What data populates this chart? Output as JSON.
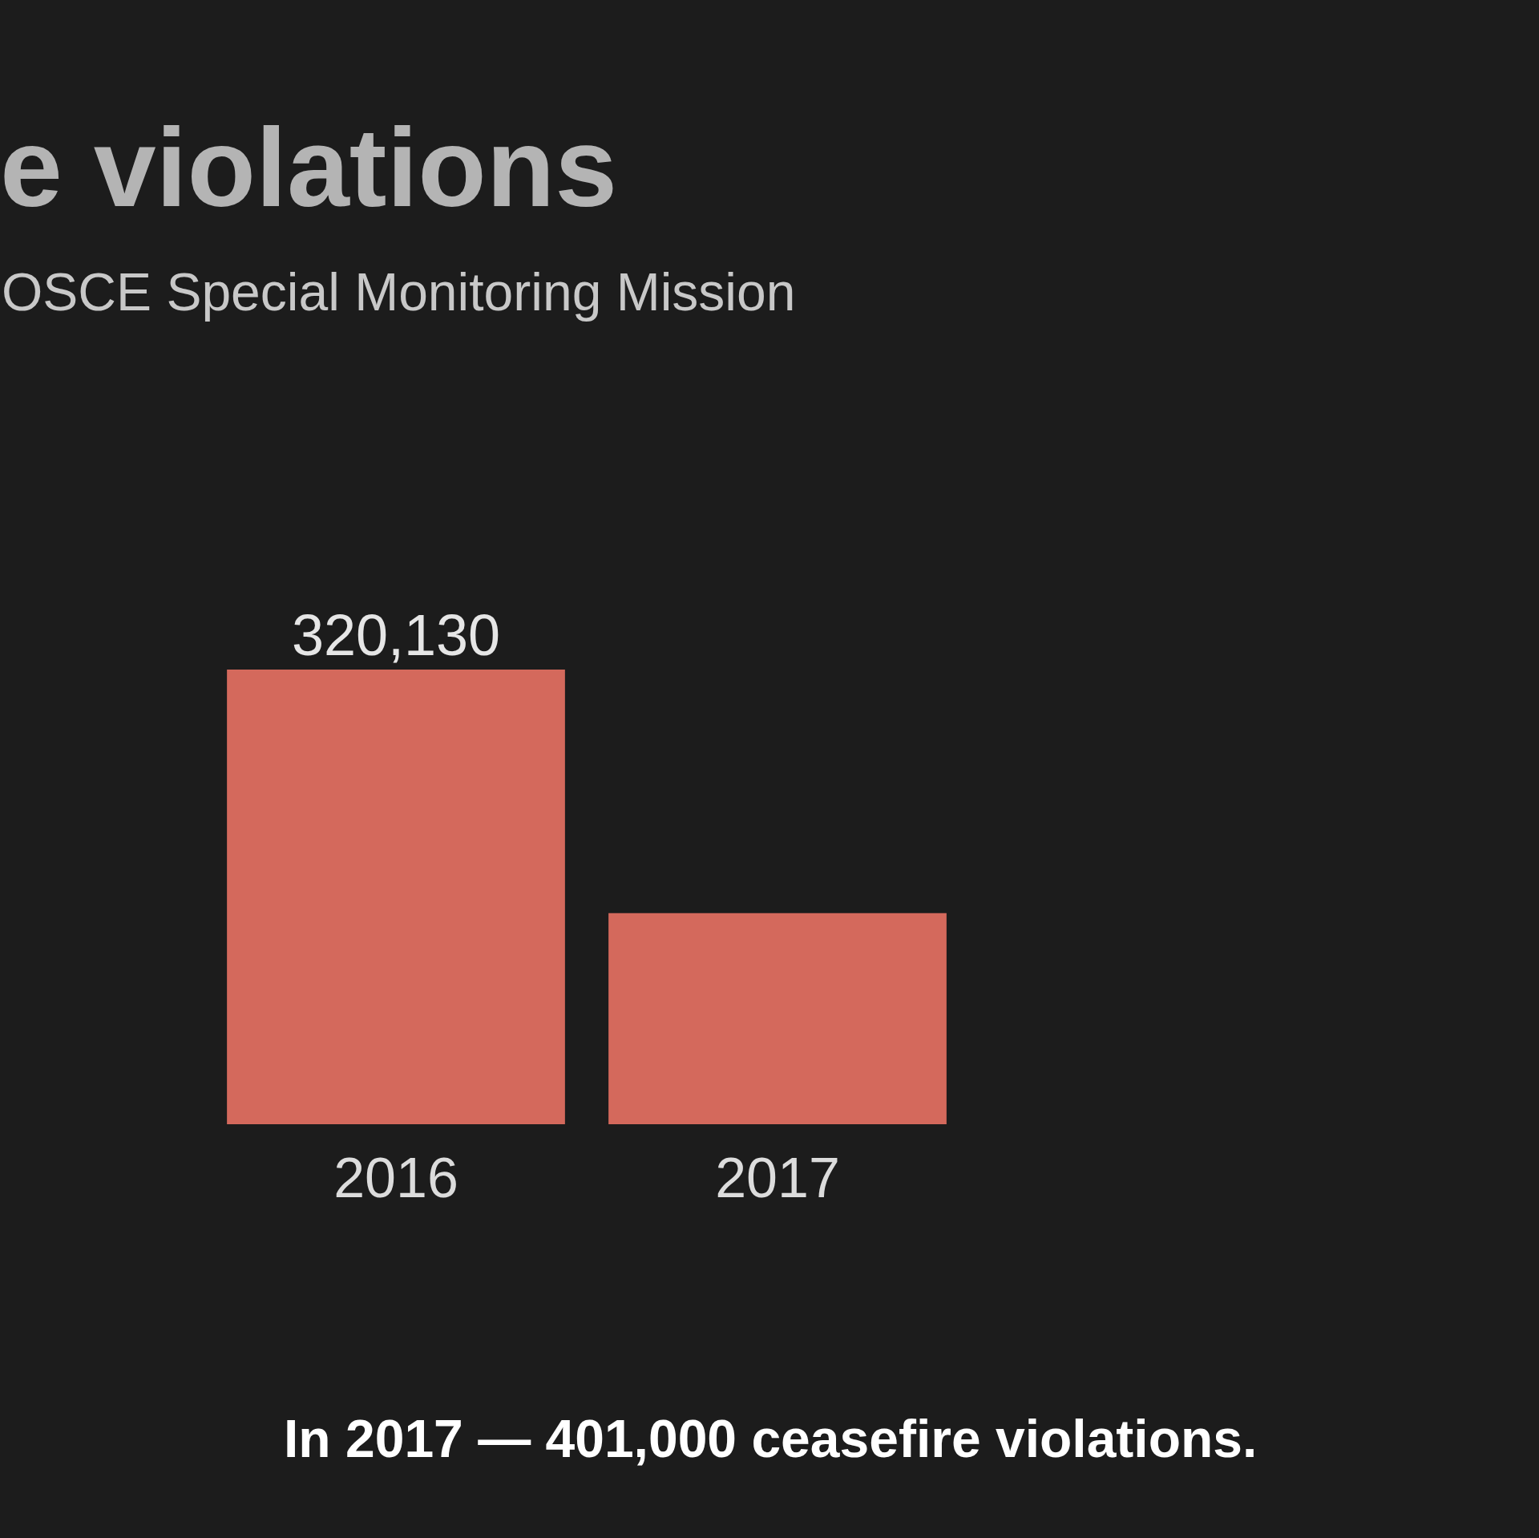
{
  "chart_data": {
    "type": "bar",
    "title": "e violations",
    "subtitle": "OSCE Special Monitoring Mission",
    "categories": [
      "2016",
      "2017"
    ],
    "values": [
      320130,
      148700
    ],
    "value_labels": [
      "320,130",
      null
    ],
    "color": "#d4695c",
    "annotations": [
      "In 2017 — 401,000 ceasefire violations."
    ]
  }
}
